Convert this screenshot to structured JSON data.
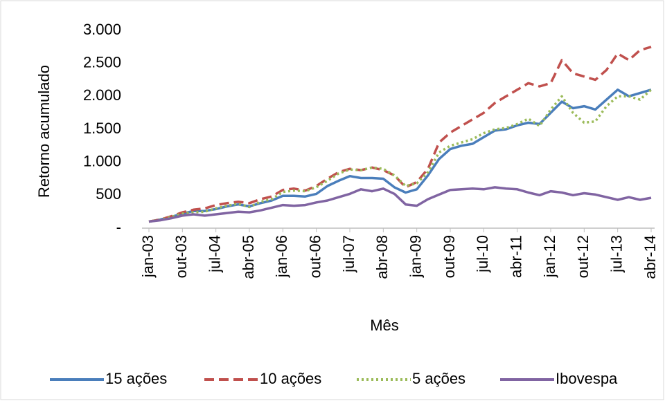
{
  "chart_data": {
    "type": "line",
    "x_label": "Mês",
    "y_label": "Retorno acumulado",
    "categories": [
      "jan-03",
      null,
      null,
      "out-03",
      null,
      null,
      "jul-04",
      null,
      null,
      "abr-05",
      null,
      null,
      "jan-06",
      null,
      null,
      "out-06",
      null,
      null,
      "jul-07",
      null,
      null,
      "abr-08",
      null,
      null,
      "jan-09",
      null,
      null,
      "out-09",
      null,
      null,
      "jul-10",
      null,
      null,
      "abr-11",
      null,
      null,
      "jan-12",
      null,
      null,
      "out-12",
      null,
      null,
      "jul-13",
      null,
      null,
      "abr-14"
    ],
    "series": [
      {
        "name": "15 ações",
        "color": "#4a7ebb",
        "dash": "solid",
        "values": [
          100,
          130,
          170,
          220,
          260,
          260,
          290,
          330,
          360,
          330,
          380,
          420,
          490,
          490,
          480,
          520,
          640,
          720,
          790,
          760,
          760,
          750,
          620,
          540,
          590,
          800,
          1050,
          1200,
          1250,
          1280,
          1380,
          1480,
          1500,
          1560,
          1600,
          1580,
          1750,
          1920,
          1820,
          1850,
          1800,
          1950,
          2100,
          2000,
          2050,
          2100
        ]
      },
      {
        "name": "10 ações",
        "color": "#c0504d",
        "dash": "dashed",
        "values": [
          100,
          130,
          180,
          240,
          280,
          300,
          350,
          380,
          400,
          380,
          440,
          480,
          580,
          600,
          570,
          640,
          750,
          850,
          900,
          880,
          920,
          880,
          800,
          620,
          700,
          900,
          1300,
          1450,
          1550,
          1650,
          1750,
          1900,
          2000,
          2100,
          2200,
          2150,
          2200,
          2550,
          2350,
          2300,
          2250,
          2400,
          2650,
          2550,
          2700,
          2750
        ]
      },
      {
        "name": "5 ações",
        "color": "#9bbb59",
        "dash": "dotted",
        "values": [
          100,
          125,
          170,
          220,
          240,
          250,
          300,
          340,
          370,
          320,
          400,
          440,
          550,
          570,
          560,
          620,
          720,
          830,
          890,
          880,
          920,
          900,
          800,
          640,
          680,
          850,
          1150,
          1250,
          1300,
          1350,
          1440,
          1500,
          1520,
          1580,
          1660,
          1550,
          1800,
          2000,
          1750,
          1600,
          1620,
          1850,
          2000,
          2000,
          1950,
          2100
        ]
      },
      {
        "name": "Ibovespa",
        "color": "#8064a2",
        "dash": "solid",
        "values": [
          100,
          120,
          150,
          190,
          210,
          190,
          210,
          230,
          250,
          240,
          270,
          310,
          350,
          340,
          350,
          390,
          420,
          470,
          520,
          590,
          560,
          600,
          520,
          360,
          340,
          440,
          510,
          580,
          590,
          600,
          590,
          620,
          600,
          590,
          540,
          500,
          560,
          540,
          500,
          530,
          510,
          470,
          430,
          470,
          430,
          460
        ]
      }
    ],
    "ylim": [
      0,
      3000
    ],
    "yticks": [
      {
        "value": 0,
        "label": "-"
      },
      500,
      {
        "value": 1000,
        "label": "1.000"
      },
      {
        "value": 1500,
        "label": "1.500"
      },
      {
        "value": 2000,
        "label": "2.000"
      },
      {
        "value": 2500,
        "label": "2.500"
      },
      {
        "value": 3000,
        "label": "3.000"
      }
    ],
    "grid": false,
    "legend": "bottom"
  }
}
